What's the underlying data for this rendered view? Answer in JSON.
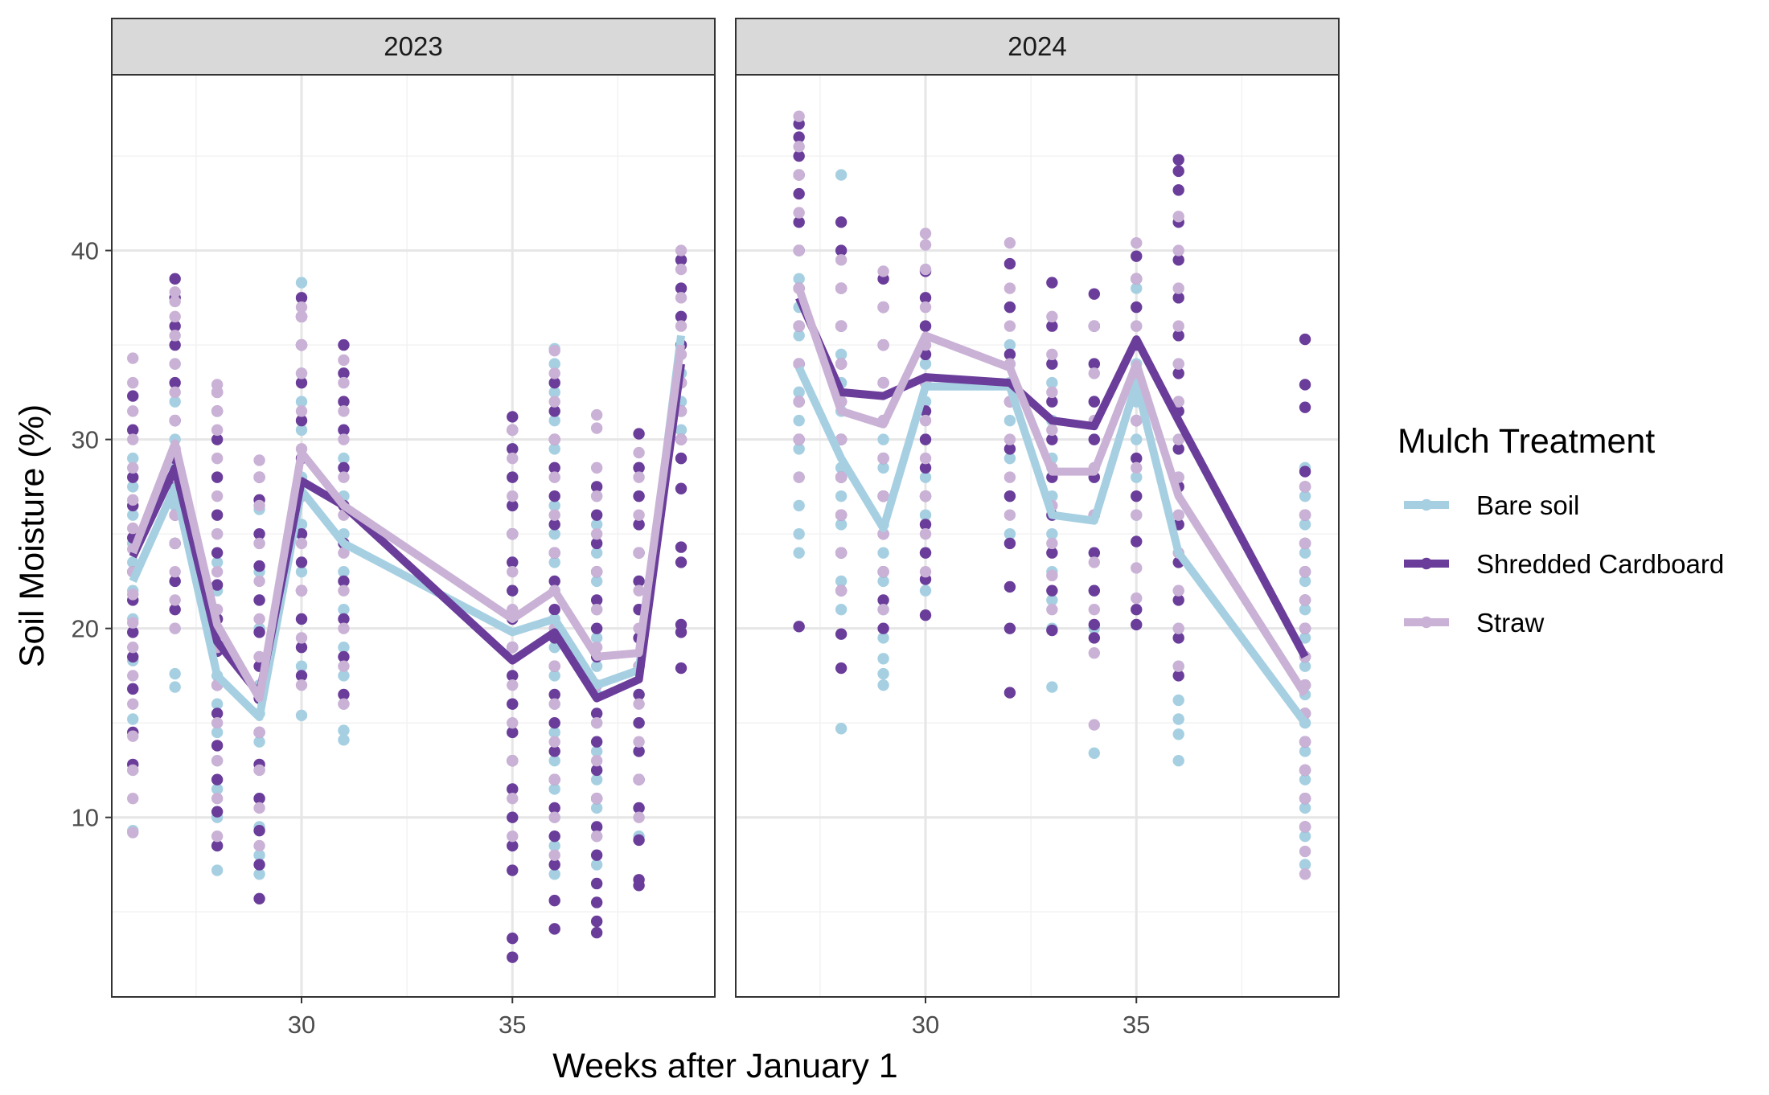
{
  "chart_data": {
    "type": "scatter",
    "facets": [
      "2023",
      "2024"
    ],
    "xlabel": "Weeks after January 1",
    "ylabel": "Soil Moisture (%)",
    "x_ticks": [
      30,
      35
    ],
    "y_ticks": [
      10,
      20,
      30,
      40
    ],
    "xlim": [
      25.5,
      39.8
    ],
    "ylim": [
      0.5,
      49.3
    ],
    "grid": true,
    "legend": {
      "title": "Mulch Treatment",
      "position": "right"
    },
    "colors": {
      "Bare soil": "#a6d0e2",
      "Shredded Cardboard": "#6a3d9a",
      "Straw": "#cab2d6"
    },
    "series": [
      {
        "name": "Bare soil",
        "facet": "2023",
        "x": [
          26,
          27,
          28,
          29,
          30,
          31,
          35,
          36,
          37,
          38,
          39
        ],
        "y": [
          22.5,
          27.5,
          17.5,
          15.3,
          27.3,
          24.5,
          19.8,
          20.5,
          17.0,
          17.8,
          35.5
        ]
      },
      {
        "name": "Shredded Cardboard",
        "facet": "2023",
        "x": [
          26,
          27,
          28,
          29,
          30,
          31,
          35,
          36,
          37,
          38,
          39
        ],
        "y": [
          23.8,
          28.5,
          19.3,
          16.5,
          27.8,
          26.5,
          18.3,
          19.8,
          16.3,
          17.3,
          34.0
        ]
      },
      {
        "name": "Straw",
        "facet": "2023",
        "x": [
          26,
          27,
          28,
          29,
          30,
          31,
          35,
          36,
          37,
          38,
          39
        ],
        "y": [
          24.0,
          29.8,
          20.2,
          16.3,
          29.3,
          26.5,
          20.5,
          22.0,
          18.5,
          18.7,
          35.0
        ]
      },
      {
        "name": "Bare soil",
        "facet": "2024",
        "x": [
          27,
          28,
          29,
          30,
          32,
          33,
          34,
          35,
          36,
          39
        ],
        "y": [
          33.8,
          29.0,
          25.3,
          32.8,
          32.8,
          26.0,
          25.7,
          33.0,
          24.0,
          15.0
        ]
      },
      {
        "name": "Shredded Cardboard",
        "facet": "2024",
        "x": [
          27,
          28,
          29,
          30,
          32,
          33,
          34,
          35,
          36,
          39
        ],
        "y": [
          37.5,
          32.5,
          32.3,
          33.3,
          33.0,
          31.0,
          30.7,
          35.3,
          31.0,
          18.5
        ]
      },
      {
        "name": "Straw",
        "facet": "2024",
        "x": [
          27,
          28,
          29,
          30,
          32,
          33,
          34,
          35,
          36,
          39
        ],
        "y": [
          38.0,
          31.5,
          30.8,
          35.5,
          33.8,
          28.3,
          28.3,
          34.0,
          27.0,
          16.5
        ]
      }
    ],
    "points": [
      {
        "facet": "2023",
        "x": 26,
        "Bare soil": [
          9.3,
          12.5,
          15.2,
          18.3,
          20.5,
          22.0,
          23.5,
          24.5,
          26.0,
          27.5,
          29.0
        ],
        "Shredded Cardboard": [
          12.8,
          14.5,
          16.8,
          18.5,
          19.8,
          21.5,
          23.0,
          24.8,
          26.5,
          28.0,
          30.5,
          32.3
        ],
        "Straw": [
          9.2,
          11.0,
          12.5,
          14.3,
          16.0,
          17.5,
          19.0,
          20.3,
          21.8,
          23.0,
          24.2,
          25.3,
          26.8,
          28.5,
          30.0,
          31.5,
          33.0,
          34.3
        ]
      },
      {
        "facet": "2023",
        "x": 27,
        "Bare soil": [
          16.9,
          17.6,
          20.0,
          22.5,
          24.5,
          26.5,
          28.5,
          30.0,
          32.0,
          34.0
        ],
        "Shredded Cardboard": [
          21.0,
          22.5,
          24.5,
          26.0,
          27.5,
          29.0,
          31.0,
          33.0,
          35.0,
          36.0,
          37.5,
          38.5
        ],
        "Straw": [
          20.0,
          21.5,
          23.0,
          24.5,
          26.0,
          28.0,
          29.5,
          31.0,
          32.5,
          34.0,
          35.5,
          36.5,
          37.3,
          37.8
        ]
      },
      {
        "facet": "2023",
        "x": 28,
        "Bare soil": [
          7.2,
          8.5,
          10.0,
          11.5,
          13.0,
          14.5,
          16.0,
          17.5,
          19.0,
          20.5,
          22.0,
          23.5,
          25.0
        ],
        "Shredded Cardboard": [
          8.5,
          10.3,
          12.0,
          13.8,
          15.5,
          17.0,
          18.8,
          20.5,
          22.3,
          24.0,
          26.0,
          28.0,
          30.0,
          31.5,
          32.5
        ],
        "Straw": [
          9.0,
          11.0,
          13.0,
          15.0,
          17.0,
          19.0,
          21.0,
          23.0,
          25.0,
          27.0,
          29.0,
          30.5,
          31.5,
          32.5,
          32.9
        ]
      },
      {
        "facet": "2023",
        "x": 29,
        "Bare soil": [
          7.0,
          8.0,
          9.5,
          11.0,
          12.5,
          14.0,
          15.5,
          17.0,
          18.5,
          20.0,
          21.5,
          23.0,
          24.5,
          26.3
        ],
        "Shredded Cardboard": [
          5.7,
          7.5,
          9.3,
          11.0,
          12.8,
          14.5,
          16.3,
          18.0,
          19.8,
          21.5,
          23.3,
          25.0,
          26.8,
          28.0
        ],
        "Straw": [
          8.5,
          10.5,
          12.5,
          14.5,
          16.5,
          18.5,
          20.5,
          22.5,
          24.5,
          26.5,
          28.0,
          28.9
        ]
      },
      {
        "facet": "2023",
        "x": 30,
        "Bare soil": [
          15.4,
          18.0,
          20.5,
          23.0,
          25.5,
          28.0,
          30.5,
          32.0,
          33.5,
          35.0,
          36.5,
          38.3
        ],
        "Shredded Cardboard": [
          17.5,
          19.0,
          20.5,
          22.0,
          23.5,
          25.0,
          27.0,
          29.0,
          31.0,
          33.0,
          35.0,
          36.5,
          37.5
        ],
        "Straw": [
          17.0,
          19.5,
          22.0,
          24.5,
          27.0,
          29.5,
          31.5,
          33.5,
          35.0,
          36.5,
          37.0
        ]
      },
      {
        "facet": "2023",
        "x": 31,
        "Bare soil": [
          14.1,
          14.6,
          16.0,
          17.5,
          19.0,
          21.0,
          23.0,
          25.0,
          27.0,
          29.0,
          30.5
        ],
        "Shredded Cardboard": [
          16.5,
          18.5,
          20.5,
          22.5,
          24.5,
          26.5,
          28.5,
          30.5,
          32.0,
          33.5,
          35.0
        ],
        "Straw": [
          16.0,
          18.0,
          20.0,
          22.0,
          24.0,
          26.0,
          28.0,
          30.0,
          31.5,
          33.0,
          34.2
        ]
      },
      {
        "facet": "2023",
        "x": 35,
        "Bare soil": [
          8.5,
          10.0,
          11.5,
          13.0,
          14.5,
          16.0,
          17.5,
          19.0,
          20.5,
          22.0,
          23.5,
          25.0,
          26.5,
          28.0,
          29.5
        ],
        "Shredded Cardboard": [
          2.6,
          3.6,
          7.2,
          8.5,
          10.0,
          11.5,
          13.0,
          14.5,
          16.0,
          17.5,
          19.0,
          20.5,
          22.0,
          23.5,
          25.0,
          26.5,
          28.0,
          29.5,
          30.5,
          31.2
        ],
        "Straw": [
          9.0,
          11.0,
          13.0,
          15.0,
          17.0,
          19.0,
          21.0,
          23.0,
          25.0,
          27.0,
          29.0,
          30.5
        ]
      },
      {
        "facet": "2023",
        "x": 36,
        "Bare soil": [
          7.0,
          8.5,
          10.0,
          11.5,
          13.0,
          14.5,
          16.0,
          17.5,
          19.0,
          20.5,
          22.0,
          23.5,
          25.0,
          26.5,
          28.0,
          29.5,
          31.0,
          32.5,
          34.0,
          34.8
        ],
        "Shredded Cardboard": [
          4.1,
          5.6,
          7.5,
          9.0,
          10.5,
          12.0,
          13.5,
          15.0,
          16.5,
          18.0,
          19.5,
          21.0,
          22.5,
          24.0,
          25.5,
          27.0,
          28.5,
          30.0,
          31.5,
          33.0
        ],
        "Straw": [
          8.0,
          10.0,
          12.0,
          14.0,
          16.0,
          18.0,
          20.0,
          22.0,
          24.0,
          26.0,
          28.0,
          30.0,
          32.0,
          33.5,
          34.7
        ]
      },
      {
        "facet": "2023",
        "x": 37,
        "Bare soil": [
          7.5,
          9.0,
          10.5,
          12.0,
          13.5,
          15.0,
          16.5,
          18.0,
          19.5,
          21.0,
          22.5,
          24.0,
          25.5,
          27.0
        ],
        "Shredded Cardboard": [
          3.9,
          4.5,
          5.5,
          6.5,
          8.0,
          9.5,
          11.0,
          12.5,
          14.0,
          15.5,
          17.0,
          18.5,
          20.0,
          21.5,
          23.0,
          24.5,
          26.0,
          27.5
        ],
        "Straw": [
          9.0,
          11.0,
          13.0,
          15.0,
          17.0,
          19.0,
          21.0,
          23.0,
          25.0,
          27.0,
          28.5,
          30.6,
          31.3
        ]
      },
      {
        "facet": "2023",
        "x": 38,
        "Bare soil": [
          9.0,
          10.5,
          12.0,
          13.5,
          15.0,
          16.5,
          18.0,
          19.5,
          21.0,
          22.5,
          24.0,
          25.5,
          27.0,
          28.5
        ],
        "Shredded Cardboard": [
          6.4,
          6.7,
          8.8,
          10.5,
          12.0,
          13.5,
          15.0,
          16.5,
          18.0,
          19.5,
          21.0,
          22.5,
          24.0,
          25.5,
          27.0,
          28.5,
          30.3
        ],
        "Straw": [
          10.0,
          12.0,
          14.0,
          16.0,
          18.0,
          20.0,
          22.0,
          24.0,
          26.0,
          28.0,
          29.3
        ]
      },
      {
        "facet": "2023",
        "x": 39,
        "Bare soil": [
          29.0,
          30.5,
          32.0,
          33.5,
          35.0,
          36.5,
          38.0,
          39.5
        ],
        "Shredded Cardboard": [
          17.9,
          19.8,
          20.2,
          23.5,
          24.3,
          27.4,
          29.0,
          30.0,
          31.5,
          33.0,
          35.0,
          36.5,
          38.0,
          39.5
        ],
        "Straw": [
          30.0,
          31.5,
          33.0,
          34.5,
          36.0,
          37.5,
          39.0,
          40.0
        ]
      },
      {
        "facet": "2024",
        "x": 27,
        "Bare soil": [
          24.0,
          25.0,
          26.5,
          28.0,
          29.5,
          31.0,
          32.5,
          34.0,
          35.5,
          37.0,
          38.5,
          40.0
        ],
        "Shredded Cardboard": [
          20.1,
          30.0,
          32.0,
          34.0,
          36.0,
          38.0,
          40.0,
          41.5,
          43.0,
          44.0,
          45.0,
          46.0,
          46.7
        ],
        "Straw": [
          28.0,
          30.0,
          32.0,
          34.0,
          36.0,
          38.0,
          40.0,
          42.0,
          44.0,
          45.5,
          47.1
        ]
      },
      {
        "facet": "2024",
        "x": 28,
        "Bare soil": [
          14.7,
          21.0,
          22.5,
          24.0,
          25.5,
          27.0,
          28.5,
          30.0,
          31.5,
          33.0,
          34.5,
          36.0,
          44.0
        ],
        "Shredded Cardboard": [
          17.9,
          19.7,
          22.0,
          24.0,
          26.0,
          28.0,
          30.0,
          32.0,
          34.0,
          36.0,
          38.0,
          40.0,
          41.5
        ],
        "Straw": [
          22.0,
          24.0,
          26.0,
          28.0,
          30.0,
          32.0,
          34.0,
          36.0,
          38.0,
          39.5
        ]
      },
      {
        "facet": "2024",
        "x": 29,
        "Bare soil": [
          17.0,
          17.6,
          18.4,
          19.5,
          21.0,
          22.5,
          24.0,
          25.5,
          27.0,
          28.5,
          30.0
        ],
        "Shredded Cardboard": [
          20.0,
          21.5,
          23.0,
          25.0,
          27.0,
          29.0,
          31.0,
          33.0,
          35.0,
          37.0,
          38.5
        ],
        "Straw": [
          21.0,
          23.0,
          25.0,
          27.0,
          29.0,
          31.0,
          33.0,
          35.0,
          37.0,
          38.9
        ]
      },
      {
        "facet": "2024",
        "x": 30,
        "Bare soil": [
          22.0,
          24.0,
          26.0,
          28.0,
          30.0,
          32.0,
          34.0,
          36.0
        ],
        "Shredded Cardboard": [
          20.7,
          22.6,
          24.0,
          25.5,
          27.0,
          28.5,
          30.0,
          31.5,
          33.0,
          34.5,
          36.0,
          37.5,
          38.9
        ],
        "Straw": [
          23.0,
          25.0,
          27.0,
          29.0,
          31.0,
          33.0,
          35.0,
          37.0,
          39.0,
          40.3,
          40.9
        ]
      },
      {
        "facet": "2024",
        "x": 32,
        "Bare soil": [
          25.0,
          27.0,
          29.0,
          31.0,
          33.0,
          35.0,
          37.0
        ],
        "Shredded Cardboard": [
          16.6,
          20.0,
          22.2,
          24.5,
          27.0,
          29.5,
          32.0,
          34.5,
          37.0,
          39.3
        ],
        "Straw": [
          26.0,
          28.0,
          30.0,
          32.0,
          34.0,
          36.0,
          38.0,
          40.4
        ]
      },
      {
        "facet": "2024",
        "x": 33,
        "Bare soil": [
          16.9,
          20.0,
          21.5,
          23.0,
          25.0,
          27.0,
          29.0,
          31.0,
          33.0
        ],
        "Shredded Cardboard": [
          19.9,
          22.0,
          24.0,
          26.0,
          28.0,
          30.0,
          32.0,
          34.0,
          36.0,
          38.3
        ],
        "Straw": [
          21.0,
          22.8,
          24.5,
          26.5,
          28.5,
          30.5,
          32.5,
          34.5,
          36.5
        ]
      },
      {
        "facet": "2024",
        "x": 34,
        "Bare soil": [
          13.4,
          20.0,
          22.0,
          24.0,
          26.0,
          28.0,
          30.0,
          32.0,
          34.0,
          36.0
        ],
        "Shredded Cardboard": [
          19.5,
          20.2,
          22.0,
          24.0,
          26.0,
          28.0,
          30.0,
          32.0,
          34.0,
          36.0,
          37.7
        ],
        "Straw": [
          14.9,
          18.7,
          21.0,
          23.5,
          26.0,
          28.5,
          31.0,
          33.5,
          36.0
        ]
      },
      {
        "facet": "2024",
        "x": 35,
        "Bare soil": [
          26.0,
          28.0,
          30.0,
          32.0,
          34.0,
          36.0,
          38.0
        ],
        "Shredded Cardboard": [
          20.2,
          21.0,
          24.6,
          27.0,
          29.0,
          31.0,
          33.0,
          35.0,
          37.0,
          38.5,
          39.7
        ],
        "Straw": [
          21.6,
          23.2,
          26.0,
          28.5,
          31.0,
          33.5,
          36.0,
          38.5,
          40.4
        ]
      },
      {
        "facet": "2024",
        "x": 36,
        "Bare soil": [
          13.0,
          14.4,
          15.2,
          16.2,
          18.0,
          20.0,
          22.0,
          24.0,
          26.0,
          28.0,
          30.0,
          32.0,
          34.0
        ],
        "Shredded Cardboard": [
          17.5,
          19.5,
          21.5,
          23.5,
          25.5,
          27.5,
          29.5,
          31.5,
          33.5,
          35.5,
          37.5,
          39.5,
          41.5,
          43.2,
          44.2,
          44.8
        ],
        "Straw": [
          18.0,
          20.0,
          22.0,
          24.0,
          26.0,
          28.0,
          30.0,
          32.0,
          34.0,
          36.0,
          38.0,
          40.0,
          41.8
        ]
      },
      {
        "facet": "2024",
        "x": 39,
        "Bare soil": [
          7.5,
          9.0,
          10.5,
          12.0,
          13.5,
          15.0,
          16.5,
          18.0,
          19.5,
          21.0,
          22.5,
          24.0,
          25.5,
          27.0,
          28.5
        ],
        "Shredded Cardboard": [
          9.5,
          11.0,
          12.5,
          14.0,
          15.5,
          17.0,
          18.5,
          20.0,
          21.5,
          23.0,
          24.5,
          26.0,
          27.5,
          28.3,
          31.7,
          32.9,
          35.3
        ],
        "Straw": [
          7.0,
          8.2,
          9.5,
          11.0,
          12.5,
          14.0,
          15.5,
          17.0,
          18.5,
          20.0,
          21.5,
          23.0,
          24.5,
          26.0,
          27.5
        ]
      }
    ]
  }
}
